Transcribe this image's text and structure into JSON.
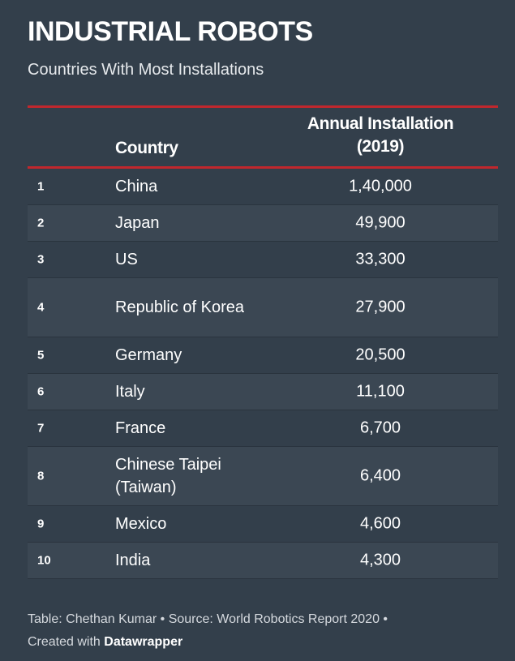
{
  "title": "INDUSTRIAL ROBOTS",
  "subtitle": "Countries With Most Installations",
  "colors": {
    "background": "#333f4b",
    "accent_rule": "#c1272d",
    "alt_row": "#3b4753",
    "text": "#ffffff"
  },
  "chart_data": {
    "type": "table",
    "columns": [
      "",
      "Country",
      "Annual Installation (2019)"
    ],
    "header_install_line1": "Annual Installation",
    "header_install_line2": "(2019)",
    "rows": [
      {
        "rank": "1",
        "country": "China",
        "value": "1,40,000"
      },
      {
        "rank": "2",
        "country": "Japan",
        "value": "49,900"
      },
      {
        "rank": "3",
        "country": "US",
        "value": "33,300"
      },
      {
        "rank": "4",
        "country": "Republic of Korea",
        "value": "27,900"
      },
      {
        "rank": "5",
        "country": "Germany",
        "value": "20,500"
      },
      {
        "rank": "6",
        "country": "Italy",
        "value": "11,100"
      },
      {
        "rank": "7",
        "country": "France",
        "value": "6,700"
      },
      {
        "rank": "8",
        "country": "Chinese Taipei (Taiwan)",
        "value": "6,400"
      },
      {
        "rank": "9",
        "country": "Mexico",
        "value": "4,600"
      },
      {
        "rank": "10",
        "country": "India",
        "value": "4,300"
      }
    ]
  },
  "footer": {
    "line1": "Table: Chethan Kumar • Source: World Robotics Report 2020 •",
    "line2_prefix": "Created with ",
    "line2_brand": "Datawrapper"
  }
}
